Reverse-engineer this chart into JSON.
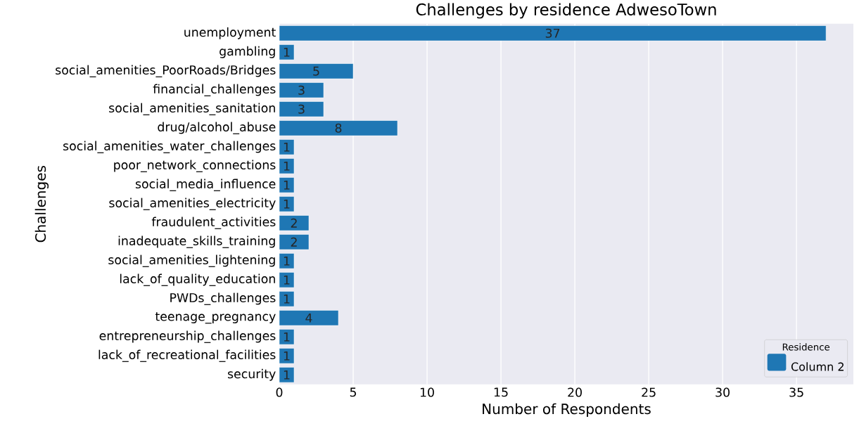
{
  "chart_data": {
    "type": "bar",
    "orientation": "horizontal",
    "title": "Challenges by residence AdwesoTown",
    "xlabel": "Number of Respondents",
    "ylabel": "Challenges",
    "legend_title": "Residence",
    "categories": [
      "unemployment",
      "gambling",
      "social_amenities_PoorRoads/Bridges",
      "financial_challenges",
      "social_amenities_sanitation",
      "drug/alcohol_abuse",
      "social_amenities_water_challenges",
      "poor_network_connections",
      "social_media_influence",
      "social_amenities_electricity",
      "fraudulent_activities",
      "inadequate_skills_training",
      "social_amenities_lightening",
      "lack_of_quality_education",
      "PWDs_challenges",
      "teenage_pregnancy",
      "entrepreneurship_challenges",
      "lack_of_recreational_facilities",
      "security"
    ],
    "series": [
      {
        "name": "Column 2",
        "color": "#1f77b4",
        "values": [
          37,
          1,
          5,
          3,
          3,
          8,
          1,
          1,
          1,
          1,
          2,
          2,
          1,
          1,
          1,
          4,
          1,
          1,
          1
        ]
      }
    ],
    "xlim": [
      0,
      38.85
    ],
    "xticks": [
      0,
      5,
      10,
      15,
      20,
      25,
      30,
      35
    ],
    "grid": "x",
    "legend": "bottom right",
    "data_labels": true
  }
}
